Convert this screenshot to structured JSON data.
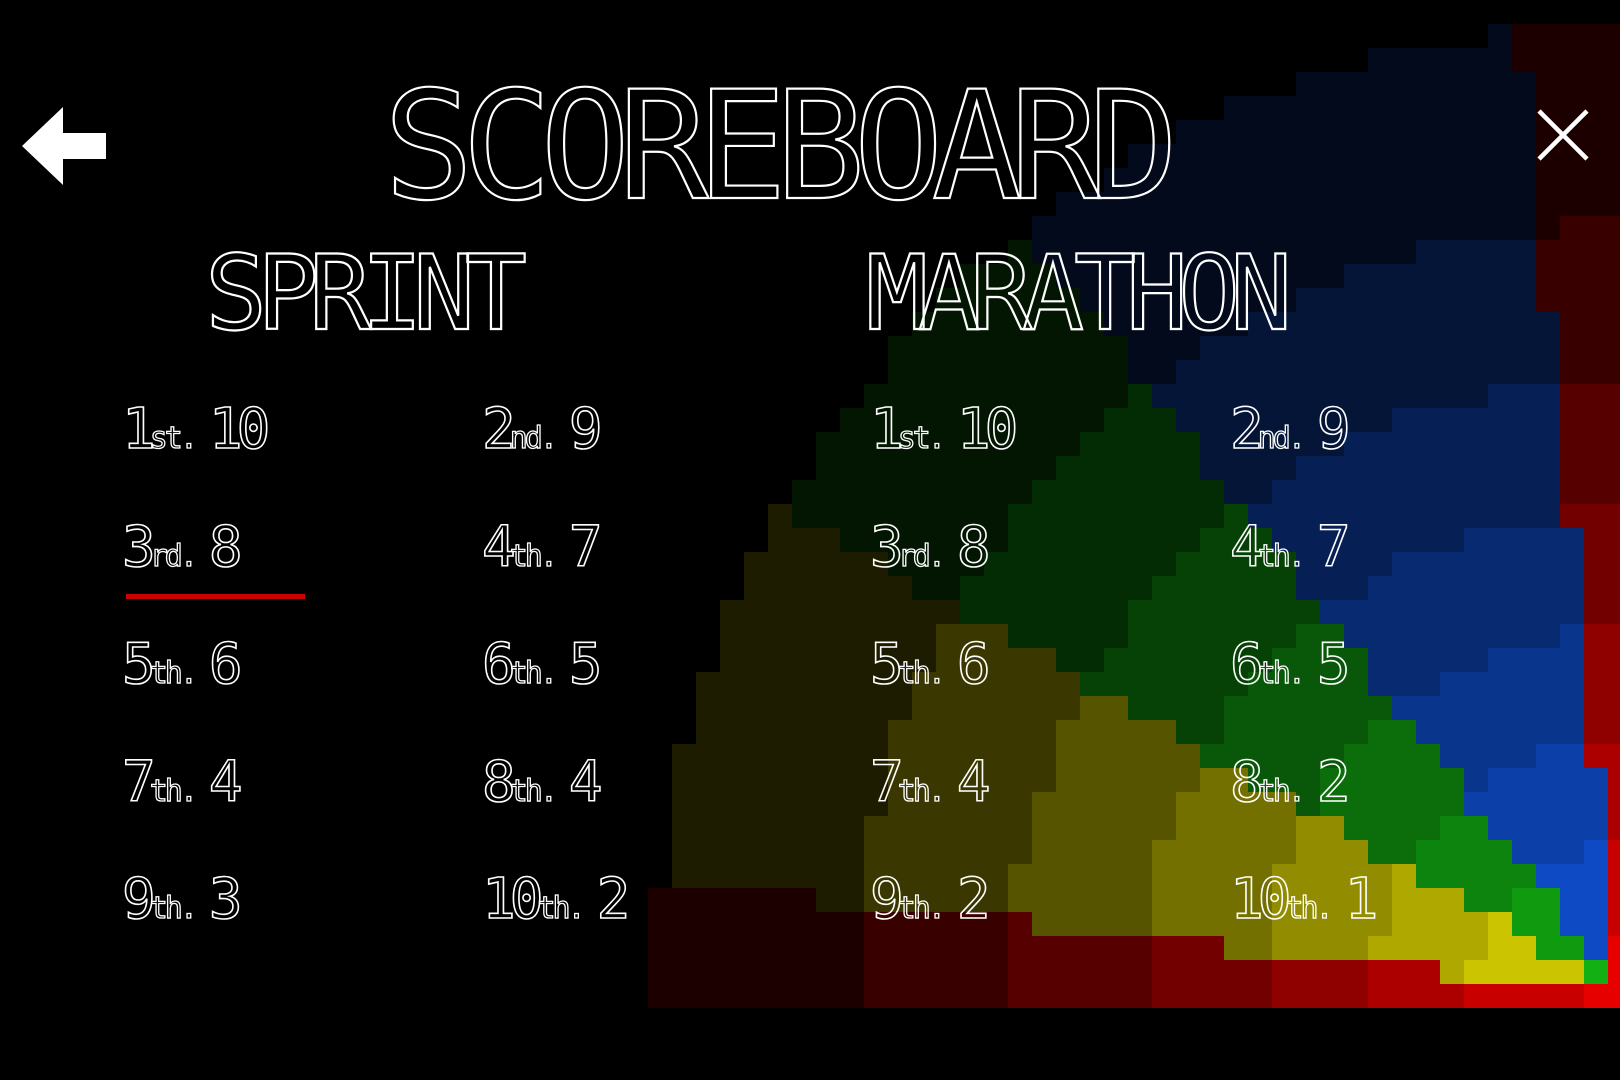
{
  "title": "SCOREBOARD",
  "colors": {
    "background": "#000000",
    "text": "#ffffff",
    "highlight_underline": "#cc0000",
    "art_red": "#e60000",
    "art_yellow": "#e8e000",
    "art_green": "#12b012",
    "art_blue": "#1155e0"
  },
  "sections": [
    {
      "name": "SPRINT",
      "entries": [
        {
          "rank": "1",
          "suffix": "st.",
          "score": "10",
          "highlighted": false
        },
        {
          "rank": "2",
          "suffix": "nd.",
          "score": "9",
          "highlighted": false
        },
        {
          "rank": "3",
          "suffix": "rd.",
          "score": "8",
          "highlighted": true
        },
        {
          "rank": "4",
          "suffix": "th.",
          "score": "7",
          "highlighted": false
        },
        {
          "rank": "5",
          "suffix": "th.",
          "score": "6",
          "highlighted": false
        },
        {
          "rank": "6",
          "suffix": "th.",
          "score": "5",
          "highlighted": false
        },
        {
          "rank": "7",
          "suffix": "th.",
          "score": "4",
          "highlighted": false
        },
        {
          "rank": "8",
          "suffix": "th.",
          "score": "4",
          "highlighted": false
        },
        {
          "rank": "9",
          "suffix": "th.",
          "score": "3",
          "highlighted": false
        },
        {
          "rank": "10",
          "suffix": "th.",
          "score": "2",
          "highlighted": false
        }
      ]
    },
    {
      "name": "MARATHON",
      "entries": [
        {
          "rank": "1",
          "suffix": "st.",
          "score": "10",
          "highlighted": false
        },
        {
          "rank": "2",
          "suffix": "nd.",
          "score": "9",
          "highlighted": false
        },
        {
          "rank": "3",
          "suffix": "rd.",
          "score": "8",
          "highlighted": false
        },
        {
          "rank": "4",
          "suffix": "th.",
          "score": "7",
          "highlighted": false
        },
        {
          "rank": "5",
          "suffix": "th.",
          "score": "6",
          "highlighted": false
        },
        {
          "rank": "6",
          "suffix": "th.",
          "score": "5",
          "highlighted": false
        },
        {
          "rank": "7",
          "suffix": "th.",
          "score": "4",
          "highlighted": false
        },
        {
          "rank": "8",
          "suffix": "th.",
          "score": "2",
          "highlighted": false
        },
        {
          "rank": "9",
          "suffix": "th.",
          "score": "2",
          "highlighted": false
        },
        {
          "rank": "10",
          "suffix": "th.",
          "score": "1",
          "highlighted": false
        }
      ]
    }
  ]
}
